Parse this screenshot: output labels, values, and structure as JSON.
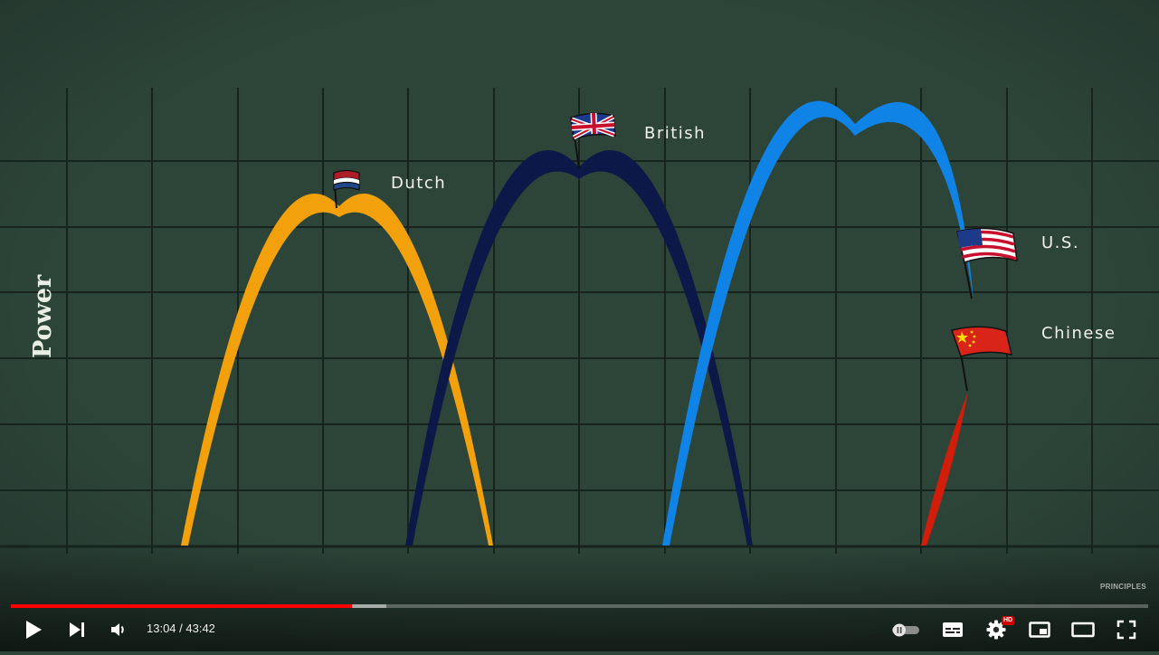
{
  "chart": {
    "axis_title": "Power",
    "labels": {
      "dutch": "Dutch",
      "british": "British",
      "us": "U.S.",
      "chinese": "Chinese"
    },
    "colors": {
      "background": "#2d4539",
      "grid": "#17241d",
      "dutch": "#f2a10c",
      "british": "#0c1848",
      "us": "#0f84e6",
      "chinese": "#d11d0a"
    }
  },
  "watermark": "PRINCIPLES",
  "player": {
    "current_time": "13:04",
    "duration": "43:42",
    "time_display": "13:04 / 43:42",
    "progress_played": 0.3,
    "progress_buffered": 0.33,
    "hd_badge": "HD",
    "icons": [
      "play-icon",
      "next-icon",
      "volume-icon",
      "autoplay-toggle-icon",
      "subtitles-icon",
      "settings-icon",
      "miniplayer-icon",
      "theater-mode-icon",
      "fullscreen-icon"
    ]
  }
}
